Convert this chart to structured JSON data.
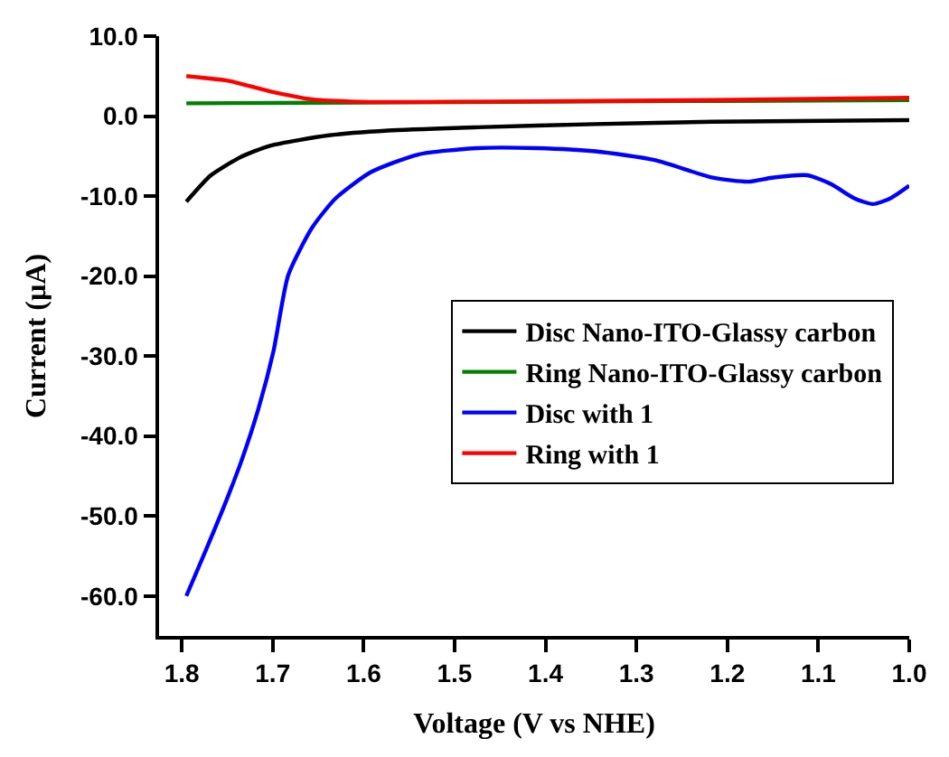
{
  "chart_data": {
    "type": "line",
    "xlabel": "Voltage (V vs NHE)",
    "ylabel": "Current (µA)",
    "xlim": [
      1.825,
      1.0
    ],
    "ylim": [
      -65,
      10
    ],
    "xticks": [
      {
        "value": 1.8,
        "label": "1.8"
      },
      {
        "value": 1.7,
        "label": "1.7"
      },
      {
        "value": 1.6,
        "label": "1.6"
      },
      {
        "value": 1.5,
        "label": "1.5"
      },
      {
        "value": 1.4,
        "label": "1.4"
      },
      {
        "value": 1.3,
        "label": "1.3"
      },
      {
        "value": 1.2,
        "label": "1.2"
      },
      {
        "value": 1.1,
        "label": "1.1"
      },
      {
        "value": 1.0,
        "label": "1.0"
      }
    ],
    "yticks": [
      {
        "value": 10,
        "label": "10.0"
      },
      {
        "value": 0,
        "label": "0.0"
      },
      {
        "value": -10,
        "label": "-10.0"
      },
      {
        "value": -20,
        "label": "-20.0"
      },
      {
        "value": -30,
        "label": "-30.0"
      },
      {
        "value": -40,
        "label": "-40.0"
      },
      {
        "value": -50,
        "label": "-50.0"
      },
      {
        "value": -60,
        "label": "-60.0"
      }
    ],
    "legend": "right",
    "marker": "none",
    "line_style": "solid",
    "series": [
      {
        "name": "Disc Nano-ITO-Glassy carbon",
        "color": "#000000",
        "x": [
          1.795,
          1.768,
          1.735,
          1.703,
          1.638,
          1.573,
          1.475,
          1.345,
          1.216,
          1.0
        ],
        "values": [
          -10.7,
          -7.4,
          -5.1,
          -3.7,
          -2.4,
          -1.8,
          -1.4,
          -1.0,
          -0.7,
          -0.5
        ]
      },
      {
        "name": "Ring Nano-ITO-Glassy carbon",
        "color": "#008000",
        "x": [
          1.795,
          1.6,
          1.4,
          1.2,
          1.0
        ],
        "values": [
          1.6,
          1.7,
          1.8,
          1.9,
          2.0
        ]
      },
      {
        "name": "Disc with 1",
        "color": "#0000ff",
        "x": [
          1.795,
          1.774,
          1.755,
          1.735,
          1.716,
          1.699,
          1.683,
          1.657,
          1.631,
          1.592,
          1.54,
          1.475,
          1.41,
          1.345,
          1.28,
          1.216,
          1.177,
          1.151,
          1.112,
          1.086,
          1.06,
          1.04,
          1.021,
          1.0
        ],
        "values": [
          -60,
          -54.4,
          -49.2,
          -43.3,
          -36.7,
          -29.3,
          -19.9,
          -14.0,
          -10.3,
          -7.0,
          -4.8,
          -4.0,
          -4.0,
          -4.4,
          -5.5,
          -7.7,
          -8.2,
          -7.7,
          -7.4,
          -8.5,
          -10.3,
          -11.0,
          -10.3,
          -8.7
        ]
      },
      {
        "name": "Ring with 1",
        "color": "#ff0000",
        "x": [
          1.795,
          1.748,
          1.703,
          1.657,
          1.605,
          1.475,
          1.216,
          1.0
        ],
        "values": [
          5.0,
          4.4,
          3.1,
          2.1,
          1.8,
          1.8,
          2.0,
          2.3
        ]
      }
    ]
  }
}
